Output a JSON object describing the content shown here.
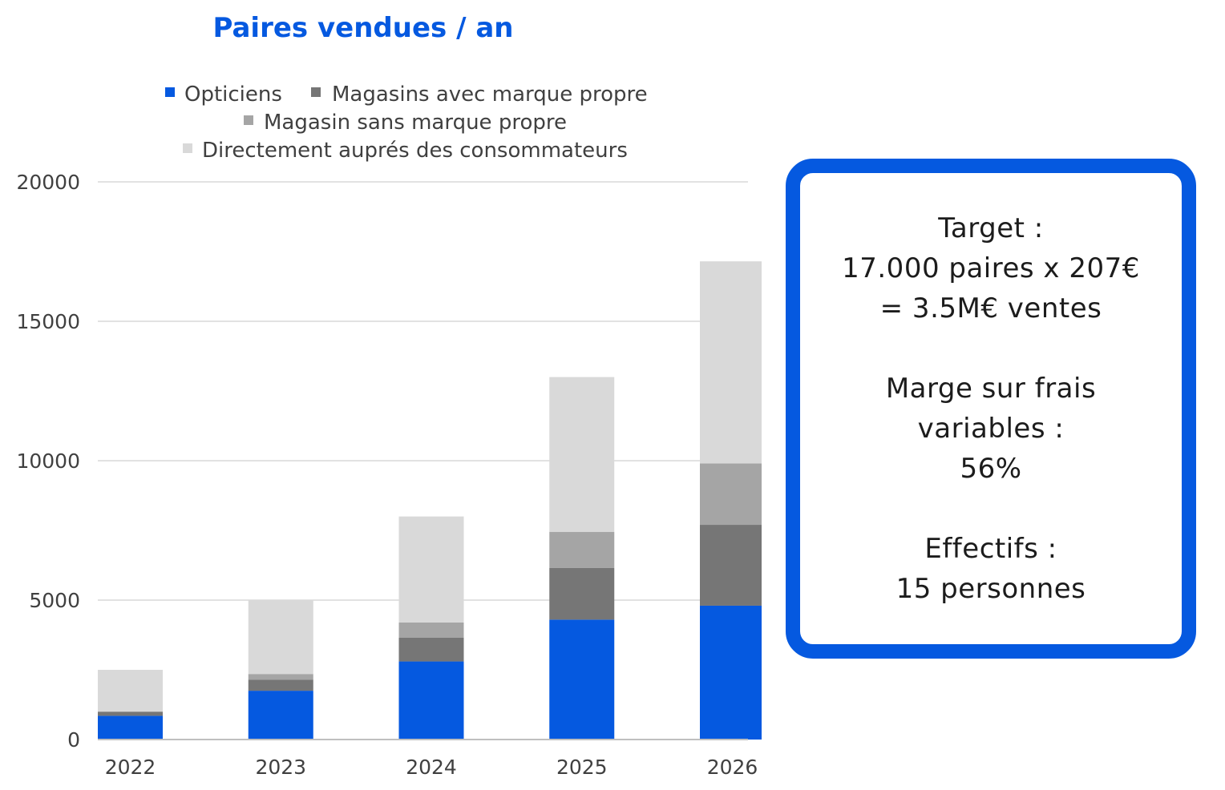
{
  "colors": {
    "accent": "#0559e0",
    "grid": "#d9d9d9",
    "axis_text": "#404040"
  },
  "chart_data": {
    "type": "bar",
    "stacked": true,
    "title": "Paires vendues / an",
    "categories": [
      "2022",
      "2023",
      "2024",
      "2025",
      "2026"
    ],
    "y_ticks": [
      "0",
      "5000",
      "10000",
      "15000",
      "20000"
    ],
    "ylim": [
      0,
      20000
    ],
    "grid": true,
    "legend_position": "top",
    "series": [
      {
        "name": "Opticiens",
        "color": "#0559e0",
        "values": [
          850,
          1750,
          2800,
          4300,
          4800
        ]
      },
      {
        "name": "Magasins avec marque propre",
        "color": "#767676",
        "values": [
          150,
          400,
          850,
          1850,
          2900
        ]
      },
      {
        "name": "Magasin sans marque propre",
        "color": "#a5a5a5",
        "values": [
          0,
          200,
          550,
          1300,
          2200
        ]
      },
      {
        "name": "Directement auprés des consommateurs",
        "color": "#d9d9d9",
        "values": [
          1500,
          2650,
          3800,
          5550,
          7250
        ]
      }
    ]
  },
  "info_box": {
    "target_label": "Target :",
    "target_line": "17.000 paires x 207€",
    "sales_line": "= 3.5M€ ventes",
    "margin_label": "Marge sur frais",
    "margin_label2": "variables :",
    "margin_value": "56%",
    "staff_label": "Effectifs :",
    "staff_value": "15 personnes"
  }
}
